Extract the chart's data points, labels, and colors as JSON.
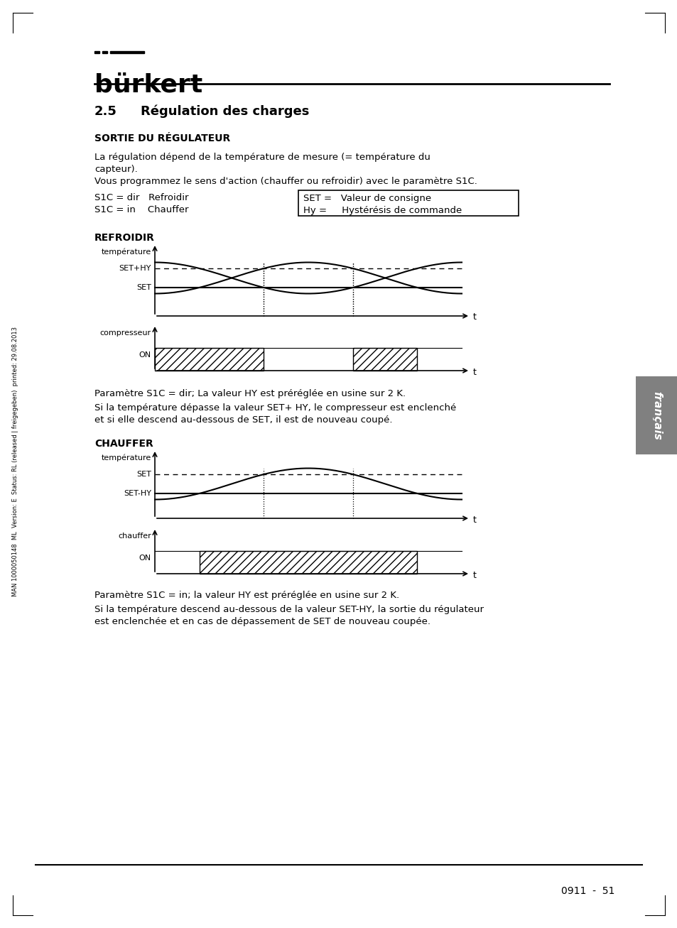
{
  "page_bg": "#ffffff",
  "logo_text": "bürkert",
  "section_number": "2.5",
  "section_title": "Régulation des charges",
  "subtitle1": "SORTIE DU RÉGULATEUR",
  "body_line1": "La régulation dépend de la température de mesure (= température du",
  "body_line2": "capteur).",
  "body_line3": "Vous programmez le sens d'action (chauffer ou refroidir) avec le paramètre S1C.",
  "s1c_line1": "S1C = dir   Refroidir",
  "s1c_line2": "S1C = in    Chauffer",
  "box_line1": "SET =   Valeur de consigne",
  "box_line2": "Hy =     Hystérésis de commande",
  "refroidir_title": "REFROIDIR",
  "refroidir_ylabel1": "température",
  "refroidir_setphy": "SET+HY",
  "refroidir_set": "SET",
  "refroidir_ylabel2": "compresseur",
  "refroidir_on": "ON",
  "refroidir_t1": "t",
  "refroidir_t2": "t",
  "refroidir_param": "Paramètre S1C = dir; La valeur HY est préréglée en usine sur 2 K.",
  "refroidir_desc1": "Si la température dépasse la valeur SET+ HY, le compresseur est enclenché",
  "refroidir_desc2": "et si elle descend au-dessous de SET, il est de nouveau coupé.",
  "chauffer_title": "CHAUFFER",
  "chauffer_ylabel1": "température",
  "chauffer_set": "SET",
  "chauffer_sethy": "SET-HY",
  "chauffer_ylabel2": "chauffer",
  "chauffer_on": "ON",
  "chauffer_t1": "t",
  "chauffer_t2": "t",
  "chauffer_param": "Paramètre S1C = in; la valeur HY est préréglée en usine sur 2 K.",
  "chauffer_desc1": "Si la température descend au-dessous de la valeur SET-HY, la sortie du régulateur",
  "chauffer_desc2": "est enclenchée et en cas de dépassement de SET de nouveau coupée.",
  "page_footer": "0911  -  51",
  "side_text": "MAN 1000050148  ML  Version: E  Status: RL (released | freigegeben)  printed: 29.08.2013",
  "francais_tab": "français"
}
